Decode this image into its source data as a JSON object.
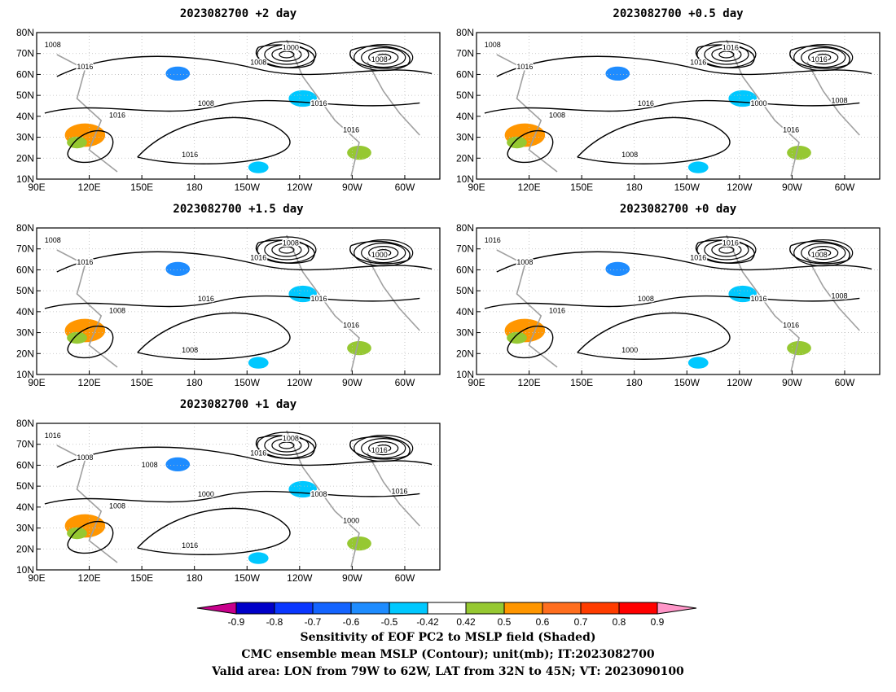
{
  "chart_data": {
    "type": "contour_map",
    "panels": [
      {
        "title": "2023082700 +2 day",
        "contour_labels": [
          "1008",
          "1016",
          "1016",
          "1008",
          "1008",
          "1016",
          "1016",
          "1016",
          "1008",
          "1000"
        ]
      },
      {
        "title": "2023082700 +0.5 day",
        "contour_labels": [
          "1008",
          "1016",
          "1008",
          "1016",
          "1016",
          "1000",
          "1008",
          "1016",
          "1016",
          "1016",
          "1008"
        ]
      },
      {
        "title": "2023082700 +1.5 day",
        "contour_labels": [
          "1008",
          "1016",
          "1008",
          "1016",
          "1016",
          "1016",
          "1008",
          "1016",
          "1000",
          "1008"
        ]
      },
      {
        "title": "2023082700 +0 day",
        "contour_labels": [
          "1016",
          "1008",
          "1016",
          "1008",
          "1016",
          "1016",
          "1000",
          "1016",
          "1008",
          "1016",
          "1008"
        ]
      },
      {
        "title": "2023082700 +1 day",
        "contour_labels": [
          "1016",
          "1008",
          "1008",
          "1000",
          "1016",
          "1008",
          "1016",
          "1000",
          "1016",
          "1008",
          "1016",
          "1008"
        ]
      }
    ],
    "y_ticks": [
      "80N",
      "70N",
      "60N",
      "50N",
      "40N",
      "30N",
      "20N",
      "10N"
    ],
    "x_ticks": [
      "90E",
      "120E",
      "150E",
      "180",
      "150W",
      "120W",
      "90W",
      "60W"
    ],
    "ylim": [
      10,
      80
    ],
    "xlim_deg_east": [
      90,
      320
    ],
    "grid": true,
    "colorbar": {
      "tick_labels": [
        "-0.9",
        "-0.8",
        "-0.7",
        "-0.6",
        "-0.5",
        "-0.42",
        "0.42",
        "0.5",
        "0.6",
        "0.7",
        "0.8",
        "0.9"
      ],
      "colors": [
        "#0000c8",
        "#0a37ff",
        "#1464ff",
        "#1e8cff",
        "#00c8ff",
        "#ffffff",
        "#96c832",
        "#ff9600",
        "#ff6e1e",
        "#ff3c00",
        "#ff0000"
      ],
      "low_end_color": "#c8008c",
      "high_end_color": "#ff96c8"
    }
  },
  "caption": {
    "line1": "Sensitivity of EOF PC2 to MSLP field (Shaded)",
    "line2": "CMC ensemble mean MSLP (Contour); unit(mb); IT:2023082700",
    "line3": "Valid area: LON from 79W to 62W, LAT from 32N to 45N; VT: 2023090100"
  }
}
